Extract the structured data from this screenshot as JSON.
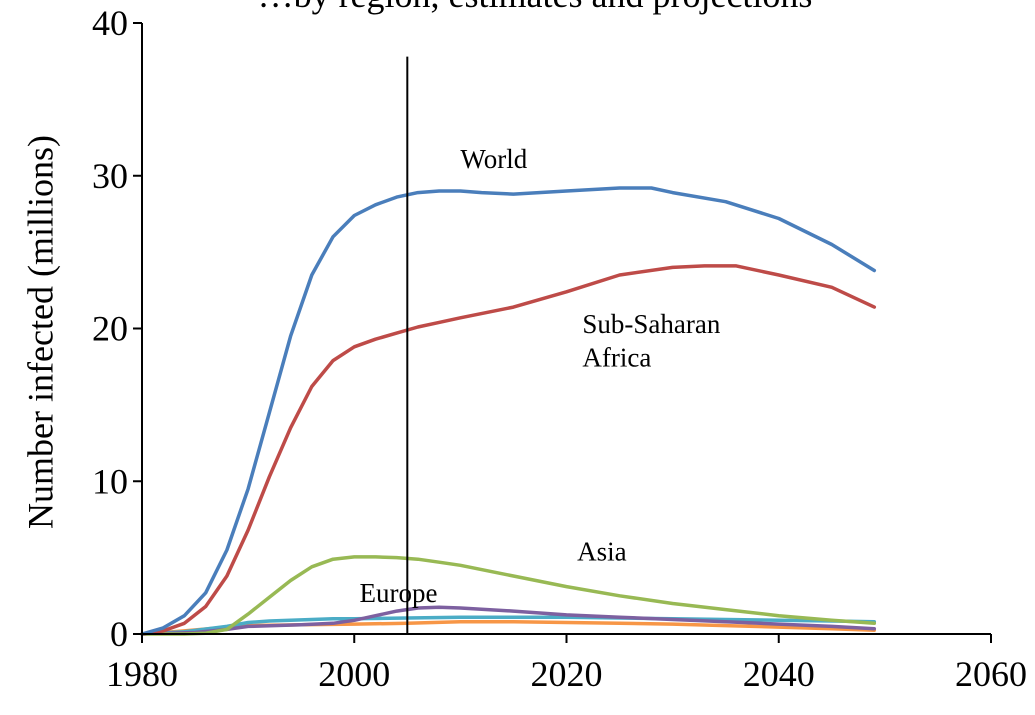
{
  "chart_data": {
    "type": "line",
    "title": "…by region, estimates and projections",
    "xlabel": "",
    "ylabel": "Number infected (millions)",
    "xlim": [
      1980,
      2060
    ],
    "ylim": [
      0,
      40
    ],
    "x_ticks": [
      1980,
      2000,
      2020,
      2040,
      2060
    ],
    "y_ticks": [
      0,
      10,
      20,
      30,
      40
    ],
    "grid": false,
    "legend": "none",
    "reference_line": {
      "x": 2005,
      "y_top": 37.8
    },
    "annotations": [
      {
        "text": "World",
        "x": 2010,
        "y": 30.5
      },
      {
        "text": "Sub-Saharan",
        "x": 2021.5,
        "y": 19.7
      },
      {
        "text": "Africa",
        "x": 2021.5,
        "y": 17.5
      },
      {
        "text": "Asia",
        "x": 2021,
        "y": 4.8
      },
      {
        "text": "Europe",
        "x": 2000.5,
        "y": 2.1
      }
    ],
    "series": [
      {
        "name": "World",
        "color": "#4a7ebb",
        "x": [
          1980,
          1982,
          1984,
          1986,
          1988,
          1990,
          1992,
          1994,
          1996,
          1998,
          2000,
          2002,
          2004,
          2006,
          2008,
          2010,
          2012,
          2015,
          2020,
          2025,
          2028,
          2030,
          2035,
          2040,
          2045,
          2049
        ],
        "y": [
          0,
          0.4,
          1.2,
          2.7,
          5.5,
          9.5,
          14.5,
          19.5,
          23.5,
          26,
          27.4,
          28.1,
          28.6,
          28.9,
          29,
          29,
          28.9,
          28.8,
          29,
          29.2,
          29.2,
          28.9,
          28.3,
          27.2,
          25.5,
          23.8
        ]
      },
      {
        "name": "Sub-Saharan Africa",
        "color": "#be4b48",
        "x": [
          1980,
          1982,
          1984,
          1986,
          1988,
          1990,
          1992,
          1994,
          1996,
          1998,
          2000,
          2002,
          2004,
          2006,
          2008,
          2010,
          2015,
          2020,
          2025,
          2030,
          2033,
          2036,
          2040,
          2045,
          2049
        ],
        "y": [
          0,
          0.2,
          0.7,
          1.8,
          3.8,
          6.8,
          10.3,
          13.5,
          16.2,
          17.9,
          18.8,
          19.3,
          19.7,
          20.1,
          20.4,
          20.7,
          21.4,
          22.4,
          23.5,
          24,
          24.1,
          24.1,
          23.5,
          22.7,
          21.4
        ]
      },
      {
        "name": "Asia",
        "color": "#98b954",
        "x": [
          1980,
          1984,
          1986,
          1988,
          1990,
          1992,
          1994,
          1996,
          1998,
          2000,
          2002,
          2004,
          2006,
          2008,
          2010,
          2015,
          2020,
          2025,
          2030,
          2035,
          2040,
          2045,
          2049
        ],
        "y": [
          0,
          0,
          0.05,
          0.3,
          1.3,
          2.4,
          3.5,
          4.4,
          4.9,
          5.05,
          5.05,
          5,
          4.9,
          4.7,
          4.5,
          3.8,
          3.1,
          2.5,
          2.0,
          1.6,
          1.2,
          0.9,
          0.7
        ]
      },
      {
        "name": "Europe",
        "color": "#7d60a0",
        "x": [
          1980,
          1985,
          1988,
          1990,
          1995,
          1998,
          2000,
          2002,
          2004,
          2006,
          2008,
          2010,
          2015,
          2020,
          2025,
          2030,
          2035,
          2040,
          2045,
          2049
        ],
        "y": [
          0,
          0.1,
          0.3,
          0.5,
          0.6,
          0.7,
          0.9,
          1.2,
          1.5,
          1.7,
          1.75,
          1.7,
          1.5,
          1.25,
          1.1,
          0.95,
          0.8,
          0.65,
          0.5,
          0.35
        ]
      },
      {
        "name": "",
        "color": "#4bacc6",
        "x": [
          1980,
          1984,
          1988,
          1990,
          1992,
          1994,
          1996,
          1998,
          2000,
          2005,
          2010,
          2015,
          2020,
          2025,
          2030,
          2035,
          2040,
          2045,
          2049
        ],
        "y": [
          0,
          0.15,
          0.5,
          0.75,
          0.85,
          0.9,
          0.95,
          1.0,
          1.0,
          1.05,
          1.1,
          1.1,
          1.1,
          1.05,
          1.0,
          0.95,
          0.9,
          0.85,
          0.8
        ]
      },
      {
        "name": "",
        "color": "#f79646",
        "x": [
          1980,
          1984,
          1988,
          1990,
          1995,
          2000,
          2005,
          2010,
          2015,
          2020,
          2025,
          2030,
          2035,
          2040,
          2045,
          2049
        ],
        "y": [
          0,
          0.2,
          0.45,
          0.55,
          0.6,
          0.65,
          0.7,
          0.8,
          0.8,
          0.75,
          0.7,
          0.65,
          0.55,
          0.45,
          0.35,
          0.25
        ]
      }
    ]
  }
}
